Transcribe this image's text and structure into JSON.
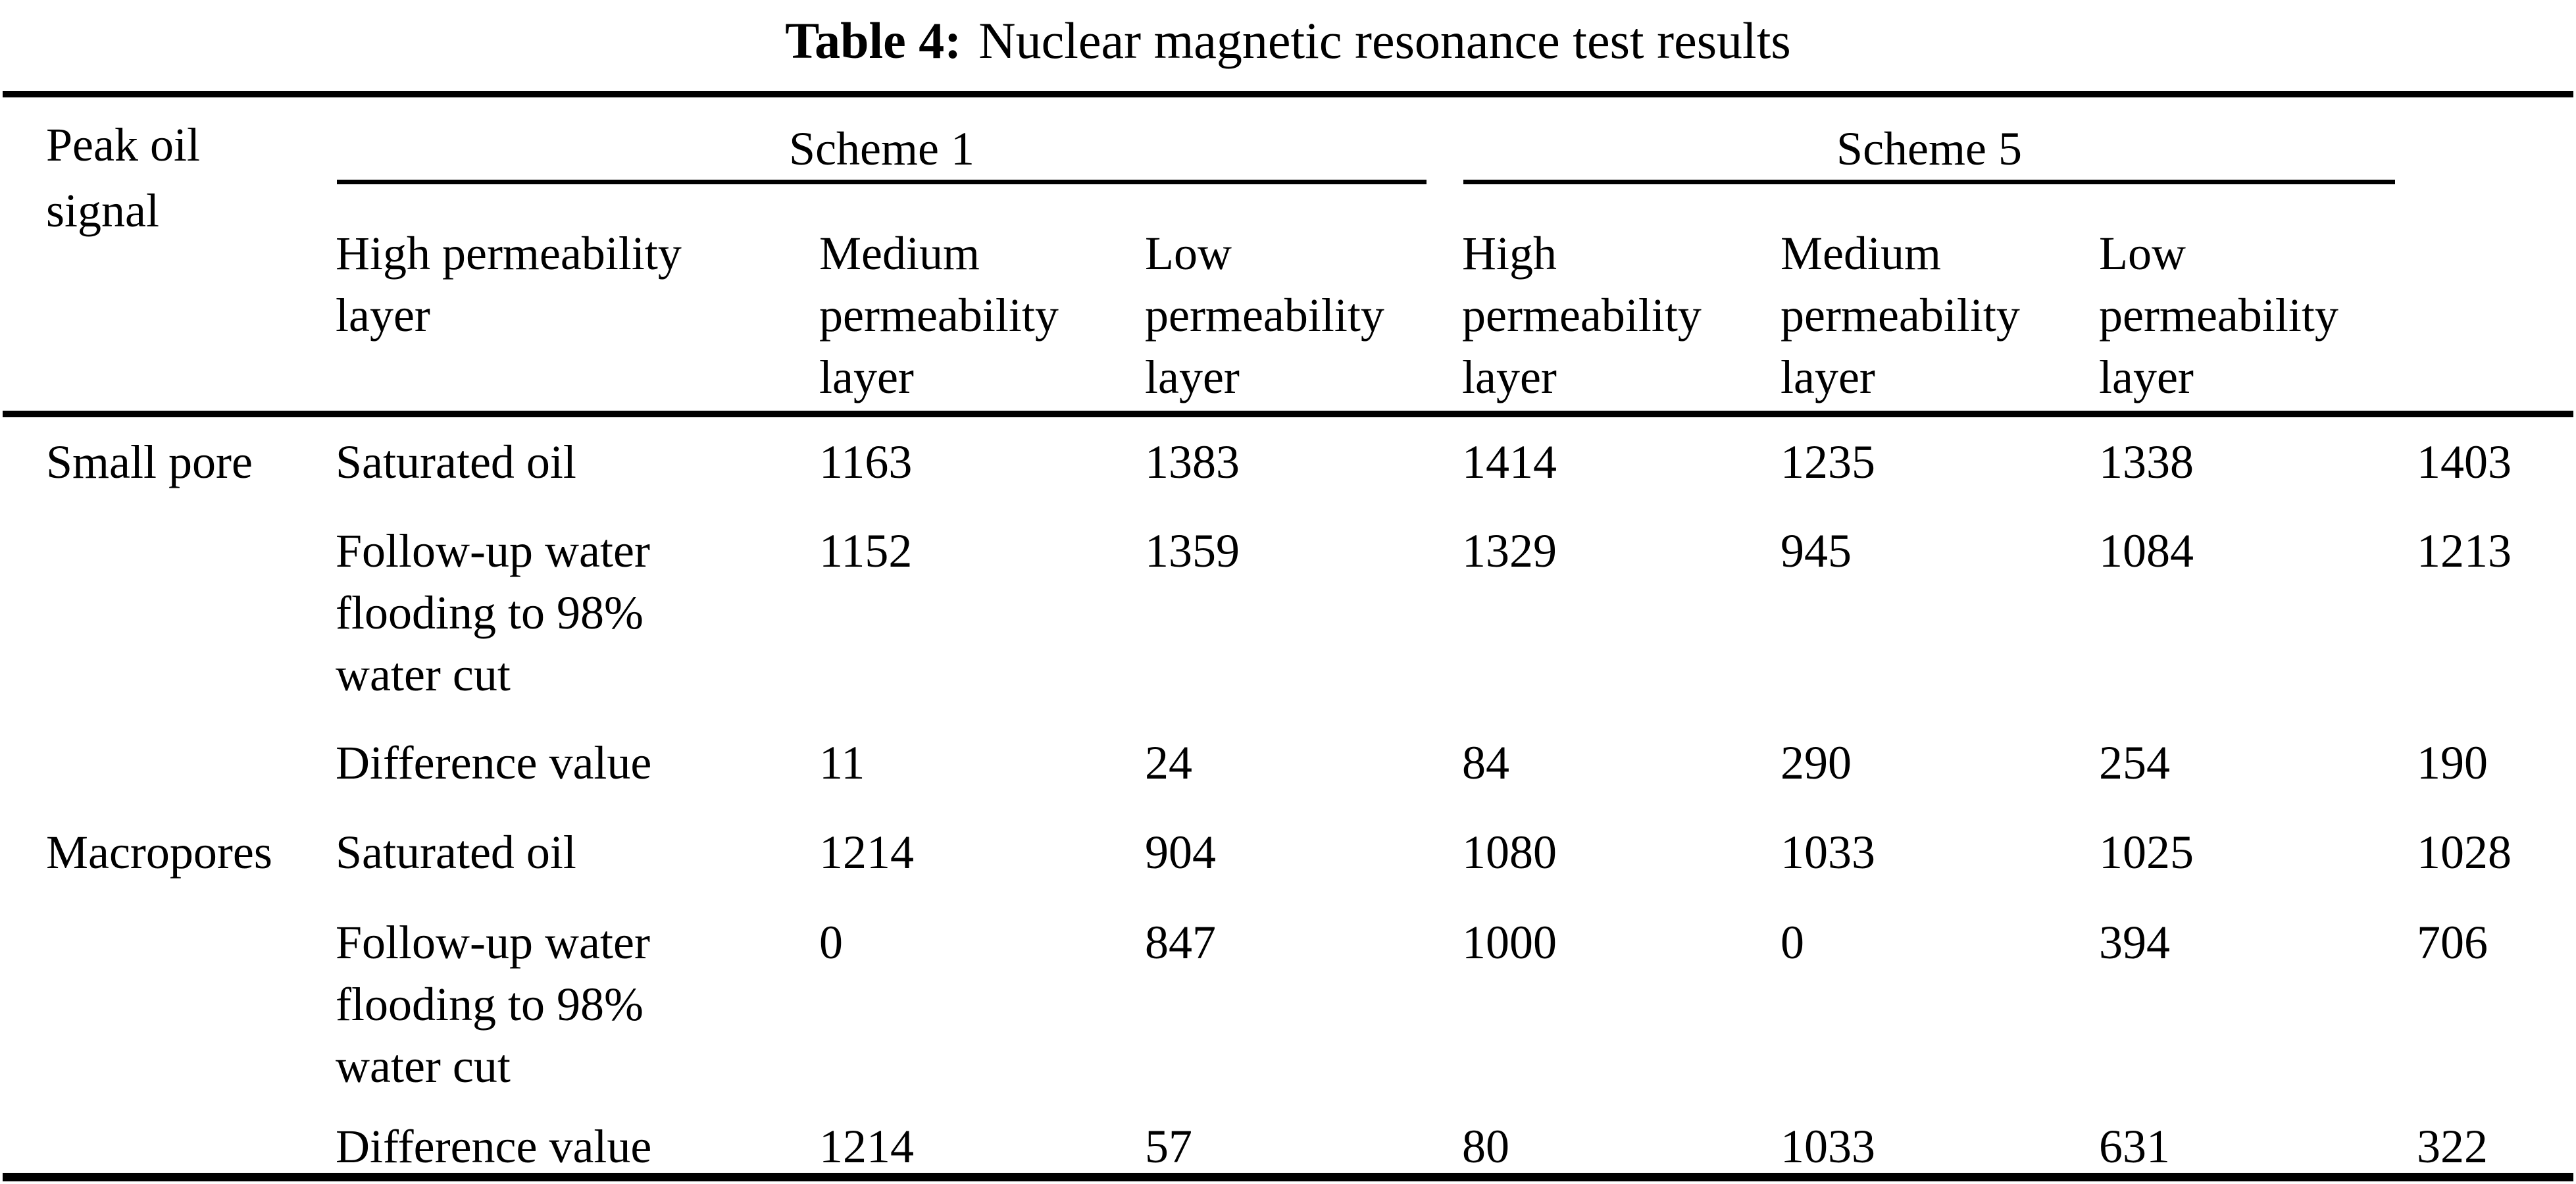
{
  "title": {
    "label": "Table 4:",
    "text": "Nuclear magnetic resonance test results"
  },
  "table": {
    "corner_header": "Peak oil\nsignal",
    "groups": [
      {
        "label": "Scheme 1",
        "column_headers": [
          "High permeability\nlayer",
          "Medium\npermeability\nlayer",
          "Low\npermeability\nlayer"
        ]
      },
      {
        "label": "Scheme 5",
        "column_headers": [
          "High\npermeability\nlayer",
          "Medium\npermeability\nlayer",
          "Low\npermeability\nlayer"
        ]
      }
    ],
    "rows": [
      {
        "group": "Small pore",
        "label": "Saturated oil",
        "values": [
          "1163",
          "1383",
          "1414",
          "1235",
          "1338",
          "1403"
        ]
      },
      {
        "group": "",
        "label": "Follow-up water\nflooding to 98%\nwater cut",
        "values": [
          "1152",
          "1359",
          "1329",
          "945",
          "1084",
          "1213"
        ]
      },
      {
        "group": "",
        "label": "Difference value",
        "values": [
          "11",
          "24",
          "84",
          "290",
          "254",
          "190"
        ]
      },
      {
        "group": "Macropores",
        "label": "Saturated oil",
        "values": [
          "1214",
          "904",
          "1080",
          "1033",
          "1025",
          "1028"
        ]
      },
      {
        "group": "",
        "label": "Follow-up water\nflooding to 98%\nwater cut",
        "values": [
          "0",
          "847",
          "1000",
          "0",
          "394",
          "706"
        ]
      },
      {
        "group": "",
        "label": "Difference value",
        "values": [
          "1214",
          "57",
          "80",
          "1033",
          "631",
          "322"
        ]
      }
    ],
    "colors": {
      "text": "#000000",
      "background": "#ffffff",
      "rule": "#000000"
    }
  }
}
